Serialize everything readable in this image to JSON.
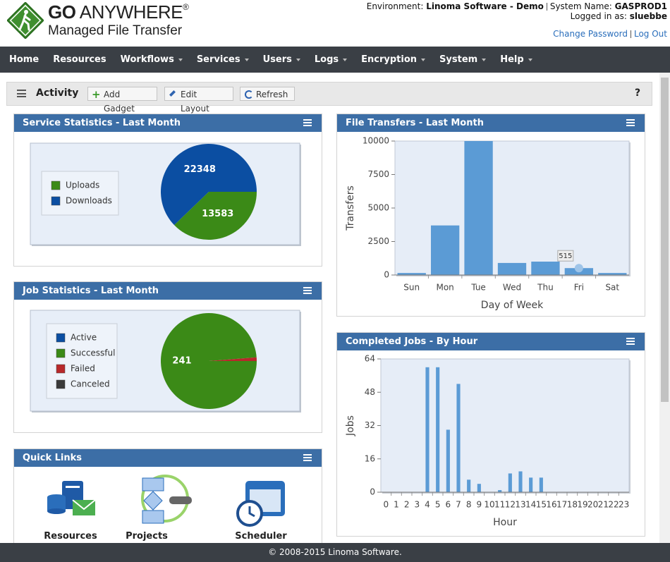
{
  "header": {
    "brand_bold": "GO",
    "brand": "ANYWHERE",
    "registered": "®",
    "tagline": "Managed File Transfer",
    "environment_label": "Environment:",
    "environment": "Linoma Software - Demo",
    "system_label": "System Name:",
    "system": "GASPROD1",
    "user_label": "Logged in as:",
    "user": "sluebbe",
    "links": [
      "Change Password",
      "Log Out"
    ]
  },
  "nav": [
    "Home",
    "Resources",
    "Workflows",
    "Services",
    "Users",
    "Logs",
    "Encryption",
    "System",
    "Help"
  ],
  "toolbar": {
    "title": "Activity",
    "buttons": [
      "Add Gadget",
      "Edit Layout",
      "Refresh"
    ],
    "help": "?"
  },
  "gadgets": [
    {
      "title": "Service Statistics - Last Month",
      "chart": {
        "type": "pie",
        "categories": [
          "Uploads",
          "Downloads"
        ],
        "values": [
          13583,
          22348
        ],
        "colors": [
          "#3b8a17",
          "#0b4ea2"
        ]
      }
    },
    {
      "title": "Job Statistics - Last Month",
      "chart": {
        "type": "pie",
        "categories": [
          "Active",
          "Successful",
          "Failed",
          "Canceled"
        ],
        "values": [
          0,
          241,
          3,
          0
        ],
        "colors": [
          "#0b4ea2",
          "#3b8a17",
          "#b8282a",
          "#3a3a3a"
        ]
      }
    },
    {
      "title": "Quick Links",
      "links": [
        "Resources",
        "Projects",
        "Scheduler"
      ]
    },
    {
      "title": "File Transfers - Last Month",
      "chart": {
        "type": "bar",
        "categories": [
          "Sun",
          "Mon",
          "Tue",
          "Wed",
          "Thu",
          "Fri",
          "Sat"
        ],
        "values": [
          150,
          3700,
          10000,
          900,
          1000,
          515,
          150
        ],
        "color": "#5b9bd5",
        "ylim": [
          0,
          10000
        ],
        "yticks": [
          0,
          2500,
          5000,
          7500,
          10000
        ],
        "xlabel": "Day of Week",
        "ylabel": "Transfers",
        "highlight": 5
      }
    },
    {
      "title": "Completed Jobs - By Hour",
      "chart": {
        "type": "bar",
        "categories": [
          "0",
          "1",
          "2",
          "3",
          "4",
          "5",
          "6",
          "7",
          "8",
          "9",
          "10",
          "11",
          "12",
          "13",
          "14",
          "15",
          "16",
          "17",
          "18",
          "19",
          "20",
          "21",
          "22",
          "23"
        ],
        "values": [
          0,
          0,
          0,
          0,
          60,
          60,
          30,
          52,
          6,
          4,
          0,
          1,
          9,
          10,
          7,
          7,
          0,
          0,
          0,
          0,
          0,
          0,
          0,
          0
        ],
        "color": "#5b9bd5",
        "ylim": [
          0,
          64
        ],
        "yticks": [
          0,
          16,
          32,
          48,
          64
        ],
        "xlabel": "Hour",
        "ylabel": "Jobs"
      }
    }
  ],
  "footer": "© 2008-2015 Linoma Software."
}
